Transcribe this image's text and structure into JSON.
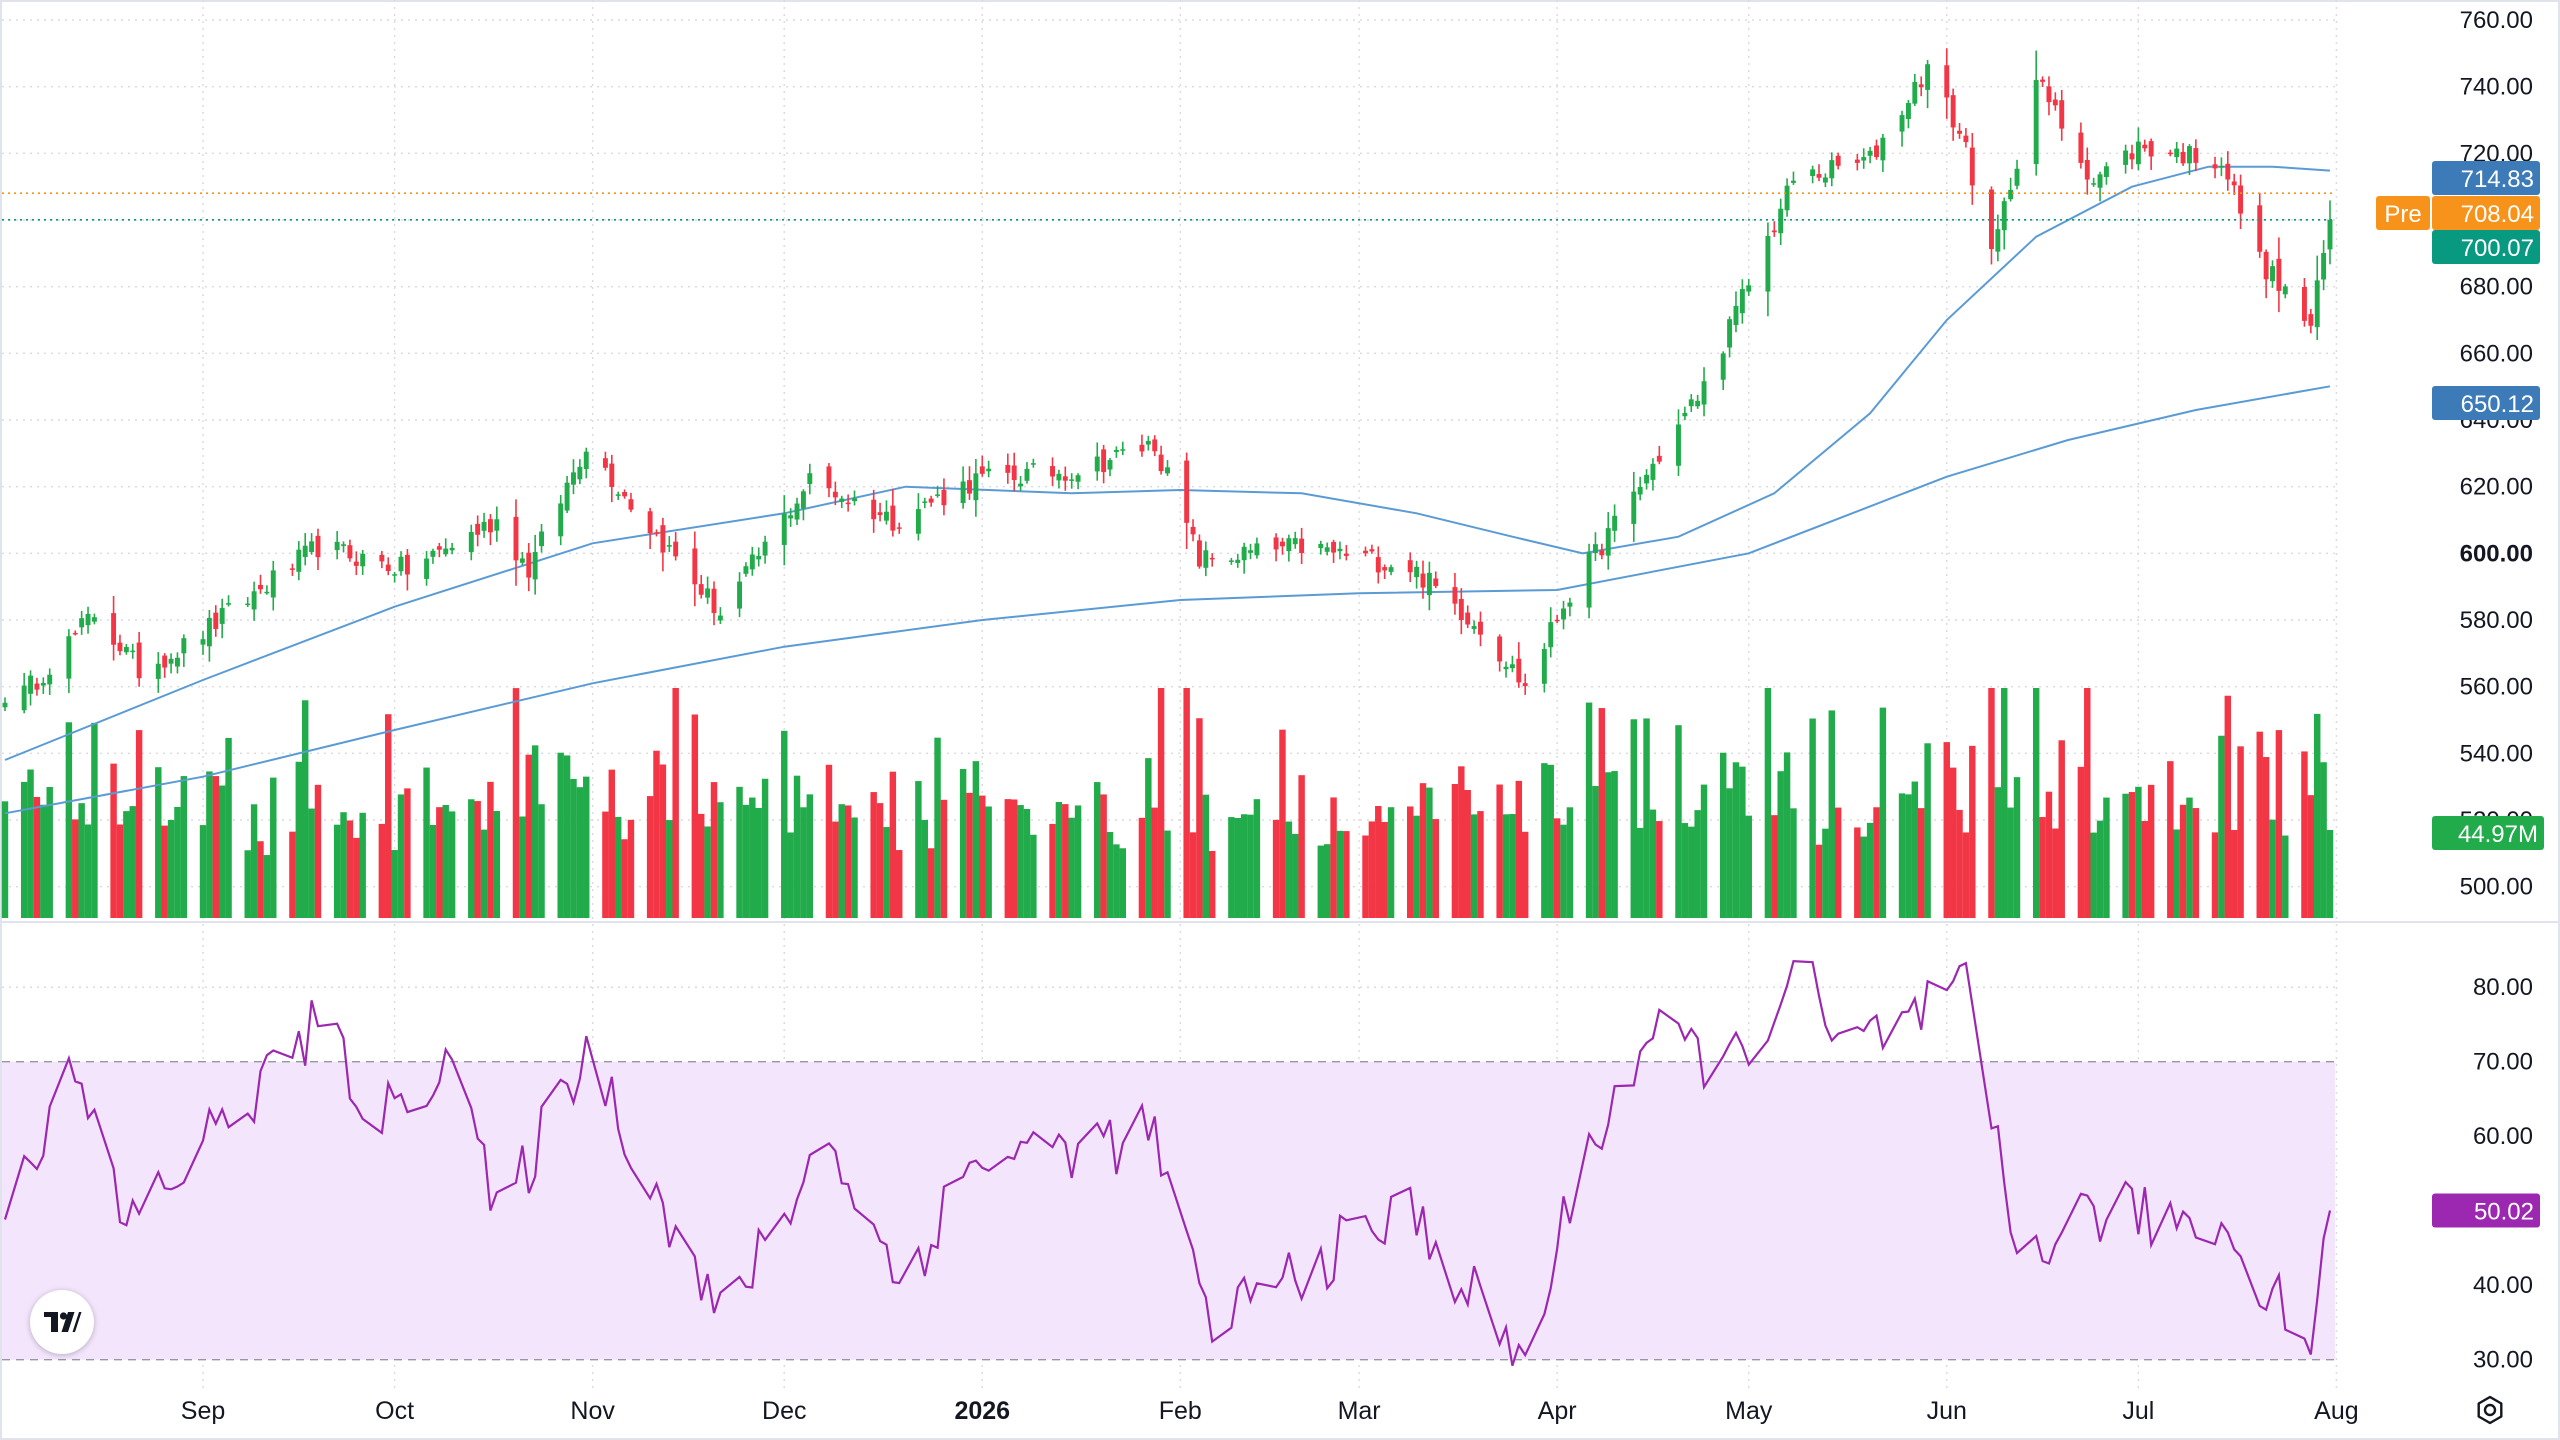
{
  "colors": {
    "up": "#22ab4a",
    "down": "#f23645",
    "ma": "#5b9bd5",
    "rsi": "#9c27b0",
    "rsi_band": "#f3e5fc",
    "pre": "#f7931a",
    "last": "#089981",
    "ma_label": "#3d7ab8",
    "grid": "#d8dbe2"
  },
  "price_axis": {
    "ticks": [
      "760.00",
      "740.00",
      "720.00",
      "700.00",
      "680.00",
      "660.00",
      "640.00",
      "620.00",
      "600.00",
      "580.00",
      "560.00",
      "540.00",
      "520.00",
      "500.00"
    ],
    "bold_tick": "600.00"
  },
  "rsi_axis": {
    "ticks": [
      "80.00",
      "70.00",
      "60.00",
      "50.00",
      "40.00",
      "30.00"
    ]
  },
  "labels": {
    "ma_short": "714.83",
    "pre_text": "Pre",
    "pre_value": "708.04",
    "last_price": "700.07",
    "ma_long": "650.12",
    "volume": "44.97M",
    "rsi": "50.02"
  },
  "time_axis": [
    "Sep",
    "Oct",
    "Nov",
    "Dec",
    "2026",
    "Feb",
    "Mar",
    "Apr",
    "May",
    "Jun",
    "Jul",
    "Aug"
  ],
  "time_axis_bold": "2026",
  "chart_data": {
    "type": "candlestick",
    "price_range": [
      490,
      766
    ],
    "rsi_range": [
      27,
      85
    ],
    "price_levels": {
      "ma_short_last": 714.83,
      "pre_market": 708.04,
      "last": 700.07,
      "ma_long_last": 650.12
    },
    "rsi_bands": [
      30,
      70
    ],
    "volume_last": "44.97M",
    "rsi_last": 50.02,
    "anchors": [
      {
        "date": "Aug 4",
        "close": 558
      },
      {
        "date": "Aug 15",
        "close": 582
      },
      {
        "date": "Aug 22",
        "close": 565
      },
      {
        "date": "Aug 29",
        "close": 572
      },
      {
        "date": "Sep 19",
        "close": 602
      },
      {
        "date": "Oct 3",
        "close": 595
      },
      {
        "date": "Oct 17",
        "close": 610
      },
      {
        "date": "Oct 22",
        "close": 595
      },
      {
        "date": "Oct 31",
        "close": 633
      },
      {
        "date": "Nov 7",
        "close": 615
      },
      {
        "date": "Nov 21",
        "close": 582
      },
      {
        "date": "Dec 5",
        "close": 622
      },
      {
        "date": "Dec 18",
        "close": 610
      },
      {
        "date": "Dec 31",
        "close": 622
      },
      {
        "date": "Jan 16",
        "close": 625
      },
      {
        "date": "Jan 28",
        "close": 633
      },
      {
        "date": "Feb 4",
        "close": 598
      },
      {
        "date": "Feb 20",
        "close": 602
      },
      {
        "date": "Mar 9",
        "close": 596
      },
      {
        "date": "Mar 20",
        "close": 578
      },
      {
        "date": "Mar 27",
        "close": 560
      },
      {
        "date": "Apr 2",
        "close": 585
      },
      {
        "date": "Apr 24",
        "close": 650
      },
      {
        "date": "May 8",
        "close": 712
      },
      {
        "date": "May 20",
        "close": 718
      },
      {
        "date": "May 29",
        "close": 746
      },
      {
        "date": "Jun 4",
        "close": 722
      },
      {
        "date": "Jun 8",
        "close": 688
      },
      {
        "date": "Jun 15",
        "close": 742
      },
      {
        "date": "Jun 24",
        "close": 712
      },
      {
        "date": "Jul 1",
        "close": 722
      },
      {
        "date": "Jul 14",
        "close": 718
      },
      {
        "date": "Jul 20",
        "close": 688
      },
      {
        "date": "Jul 28",
        "close": 668
      },
      {
        "date": "Jul 31",
        "close": 700.07
      }
    ],
    "rsi_anchors": [
      {
        "date": "Aug 1",
        "value": 52
      },
      {
        "date": "Aug 12",
        "value": 68
      },
      {
        "date": "Aug 20",
        "value": 48
      },
      {
        "date": "Sep 19",
        "value": 75
      },
      {
        "date": "Sep 29",
        "value": 62
      },
      {
        "date": "Oct 10",
        "value": 72
      },
      {
        "date": "Oct 17",
        "value": 48
      },
      {
        "date": "Oct 31",
        "value": 72
      },
      {
        "date": "Nov 21",
        "value": 35
      },
      {
        "date": "Dec 8",
        "value": 60
      },
      {
        "date": "Dec 19",
        "value": 40
      },
      {
        "date": "Dec 31",
        "value": 57
      },
      {
        "date": "Jan 28",
        "value": 60
      },
      {
        "date": "Feb 5",
        "value": 35
      },
      {
        "date": "Mar 9",
        "value": 50
      },
      {
        "date": "Mar 27",
        "value": 29
      },
      {
        "date": "Apr 5",
        "value": 57
      },
      {
        "date": "Apr 15",
        "value": 73
      },
      {
        "date": "Apr 29",
        "value": 70
      },
      {
        "date": "May 9",
        "value": 83
      },
      {
        "date": "May 15",
        "value": 71
      },
      {
        "date": "Jun 4",
        "value": 79
      },
      {
        "date": "Jun 12",
        "value": 44
      },
      {
        "date": "Jun 24",
        "value": 50
      },
      {
        "date": "Jul 14",
        "value": 48
      },
      {
        "date": "Jul 28",
        "value": 33
      },
      {
        "date": "Jul 31",
        "value": 50.02
      }
    ]
  }
}
